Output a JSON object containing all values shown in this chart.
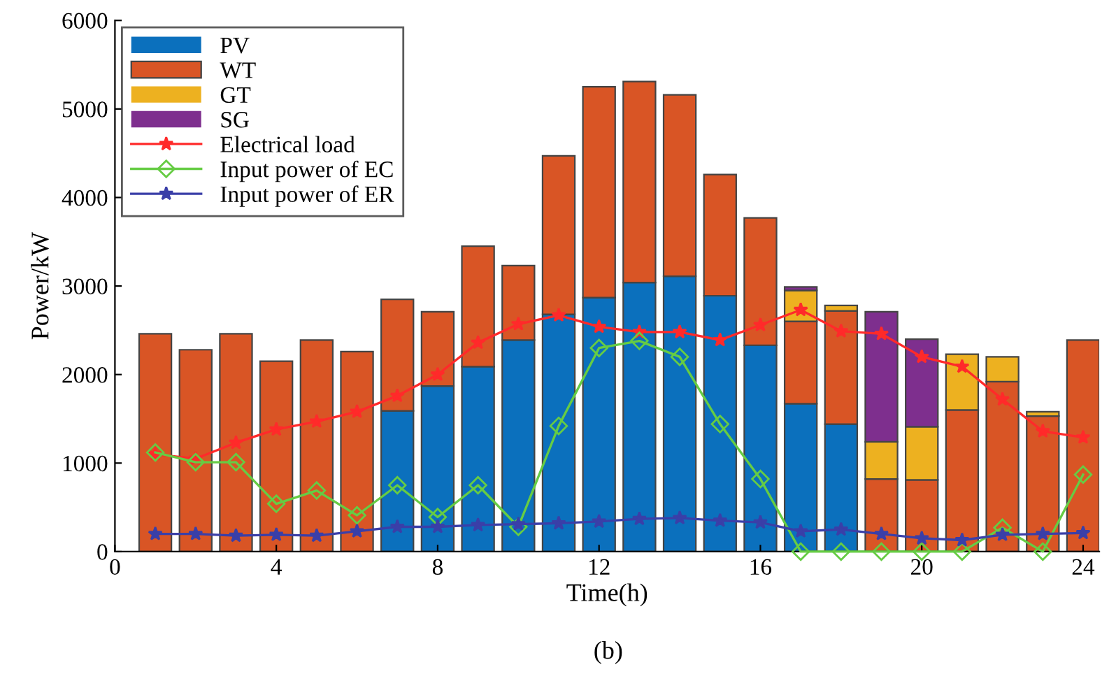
{
  "chart_data": {
    "type": "bar",
    "stacked": true,
    "xlabel": "Time(h)",
    "ylabel": "Power/kW",
    "annotations": [
      "(b)"
    ],
    "x": [
      1,
      2,
      3,
      4,
      5,
      6,
      7,
      8,
      9,
      10,
      11,
      12,
      13,
      14,
      15,
      16,
      17,
      18,
      19,
      20,
      21,
      22,
      23,
      24
    ],
    "series": [
      {
        "name": "PV",
        "color": "#0b70bd",
        "values": [
          0,
          0,
          0,
          0,
          0,
          0,
          1590,
          1870,
          2090,
          2390,
          2680,
          2870,
          3040,
          3110,
          2890,
          2330,
          1670,
          1440,
          0,
          0,
          0,
          0,
          0,
          0
        ]
      },
      {
        "name": "WT",
        "color": "#d95525",
        "values": [
          2460,
          2280,
          2460,
          2150,
          2390,
          2260,
          1260,
          840,
          1360,
          840,
          1790,
          2380,
          2270,
          2050,
          1370,
          1440,
          930,
          1280,
          820,
          810,
          1600,
          1920,
          1530,
          2390
        ]
      },
      {
        "name": "GT",
        "color": "#edb120",
        "values": [
          0,
          0,
          0,
          0,
          0,
          0,
          0,
          0,
          0,
          0,
          0,
          0,
          0,
          0,
          0,
          0,
          350,
          60,
          420,
          600,
          630,
          280,
          50,
          0
        ]
      },
      {
        "name": "SG",
        "color": "#7e2f8e",
        "values": [
          0,
          0,
          0,
          0,
          0,
          0,
          0,
          0,
          0,
          0,
          0,
          0,
          0,
          0,
          0,
          0,
          40,
          0,
          1470,
          990,
          0,
          0,
          0,
          0
        ]
      },
      {
        "name": "Electrical load",
        "type": "line",
        "color": "#ff2a2a",
        "marker": "star",
        "values": [
          1100,
          1050,
          1230,
          1380,
          1470,
          1580,
          1760,
          2000,
          2360,
          2570,
          2670,
          2540,
          2480,
          2480,
          2390,
          2560,
          2730,
          2490,
          2460,
          2200,
          2090,
          1720,
          1360,
          1290
        ]
      },
      {
        "name": "Input power of EC",
        "type": "line",
        "color": "#66cc44",
        "marker": "diamond",
        "values": [
          1120,
          1010,
          1010,
          540,
          690,
          410,
          750,
          390,
          750,
          280,
          1420,
          2300,
          2380,
          2200,
          1440,
          820,
          0,
          0,
          0,
          0,
          0,
          270,
          0,
          870
        ]
      },
      {
        "name": "Input power of ER",
        "type": "line",
        "color": "#3a3fa8",
        "marker": "star",
        "values": [
          200,
          200,
          180,
          190,
          180,
          230,
          280,
          280,
          300,
          310,
          320,
          340,
          370,
          380,
          350,
          330,
          230,
          250,
          200,
          150,
          130,
          190,
          200,
          210
        ]
      }
    ],
    "xlim": [
      0,
      24.4
    ],
    "xticks": [
      0,
      4,
      8,
      12,
      16,
      20,
      24
    ],
    "ylim": [
      0,
      6000
    ],
    "yticks": [
      0,
      1000,
      2000,
      3000,
      4000,
      5000,
      6000
    ],
    "grid": false,
    "legend": "top left"
  }
}
